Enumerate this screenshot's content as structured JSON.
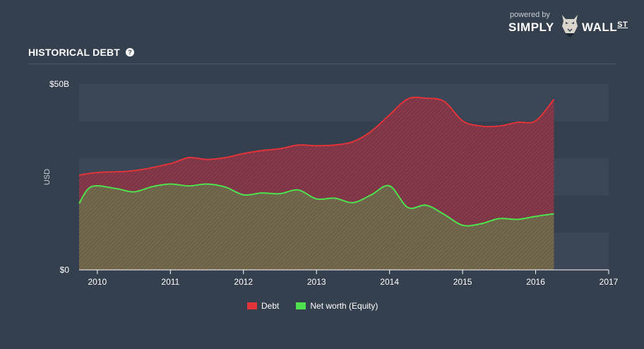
{
  "brand": {
    "powered_by": "powered by",
    "name_left": "SIMPLY",
    "name_right": "WALL",
    "name_suffix": "ST"
  },
  "header": {
    "title": "HISTORICAL DEBT",
    "help_icon": "question-circle-icon"
  },
  "colors": {
    "background": "#35404f",
    "band": "#3b4656",
    "debt": "#e0343a",
    "equity": "#4ee04e"
  },
  "chart_data": {
    "type": "area",
    "title": "HISTORICAL DEBT",
    "ylabel": "USD",
    "ylim": [
      0,
      50
    ],
    "xlim": [
      2009.75,
      2017
    ],
    "y_ticks": [
      {
        "value": 0,
        "label": "$0"
      },
      {
        "value": 50,
        "label": "$50B"
      }
    ],
    "x_ticks": [
      {
        "value": 2010,
        "label": "2010"
      },
      {
        "value": 2011,
        "label": "2011"
      },
      {
        "value": 2012,
        "label": "2012"
      },
      {
        "value": 2013,
        "label": "2013"
      },
      {
        "value": 2014,
        "label": "2014"
      },
      {
        "value": 2015,
        "label": "2015"
      },
      {
        "value": 2016,
        "label": "2016"
      },
      {
        "value": 2017,
        "label": "2017"
      }
    ],
    "grid": true,
    "legend_position": "bottom-center",
    "series": [
      {
        "name": "Debt",
        "color": "#e0343a",
        "points": [
          [
            2009.75,
            25.5
          ],
          [
            2010.0,
            26.2
          ],
          [
            2010.5,
            26.7
          ],
          [
            2011.0,
            28.6
          ],
          [
            2011.25,
            30.2
          ],
          [
            2011.5,
            29.7
          ],
          [
            2011.75,
            30.2
          ],
          [
            2012.0,
            31.3
          ],
          [
            2012.25,
            32.1
          ],
          [
            2012.5,
            32.6
          ],
          [
            2012.75,
            33.6
          ],
          [
            2013.0,
            33.4
          ],
          [
            2013.25,
            33.6
          ],
          [
            2013.5,
            34.5
          ],
          [
            2013.75,
            37.3
          ],
          [
            2014.0,
            41.7
          ],
          [
            2014.25,
            46.0
          ],
          [
            2014.5,
            46.2
          ],
          [
            2014.75,
            45.3
          ],
          [
            2015.0,
            40.1
          ],
          [
            2015.25,
            38.7
          ],
          [
            2015.5,
            38.7
          ],
          [
            2015.75,
            39.7
          ],
          [
            2016.0,
            40.1
          ],
          [
            2016.25,
            45.9
          ]
        ]
      },
      {
        "name": "Net worth (Equity)",
        "color": "#4ee04e",
        "points": [
          [
            2009.75,
            17.9
          ],
          [
            2009.92,
            22.4
          ],
          [
            2010.25,
            21.9
          ],
          [
            2010.5,
            21.0
          ],
          [
            2010.75,
            22.4
          ],
          [
            2011.0,
            23.1
          ],
          [
            2011.25,
            22.6
          ],
          [
            2011.5,
            23.1
          ],
          [
            2011.75,
            22.3
          ],
          [
            2012.0,
            20.2
          ],
          [
            2012.25,
            20.7
          ],
          [
            2012.5,
            20.5
          ],
          [
            2012.75,
            21.5
          ],
          [
            2013.0,
            19.1
          ],
          [
            2013.25,
            19.3
          ],
          [
            2013.5,
            18.1
          ],
          [
            2013.75,
            20.2
          ],
          [
            2014.0,
            22.6
          ],
          [
            2014.25,
            16.8
          ],
          [
            2014.5,
            17.4
          ],
          [
            2014.75,
            14.9
          ],
          [
            2015.0,
            12.0
          ],
          [
            2015.25,
            12.4
          ],
          [
            2015.5,
            13.8
          ],
          [
            2015.75,
            13.6
          ],
          [
            2016.0,
            14.4
          ],
          [
            2016.25,
            15.1
          ]
        ]
      }
    ]
  }
}
